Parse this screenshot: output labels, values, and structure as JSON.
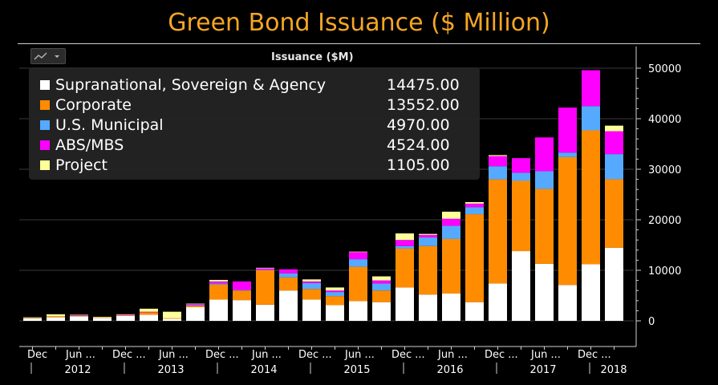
{
  "page_title": "Green Bond Issuance ($ Million)",
  "chart_data": {
    "type": "bar",
    "stacked": true,
    "series_title": "Issuance ($M)",
    "ylim": [
      -5000,
      54000
    ],
    "yticks": [
      0,
      10000,
      20000,
      30000,
      40000,
      50000
    ],
    "x_tick_labels": [
      "Dec",
      "Jun ...",
      "Dec ...",
      "Jun ...",
      "Dec ...",
      "Jun ...",
      "Dec ...",
      "Jun ...",
      "Dec ...",
      "Jun ...",
      "Dec ...",
      "Jun ...",
      "Dec ..."
    ],
    "year_labels": [
      "2012",
      "2013",
      "2014",
      "2015",
      "2016",
      "2017",
      "2018"
    ],
    "series": [
      {
        "name": "Supranational, Sovereign & Agency",
        "color": "#ffffff",
        "last": "14475.00",
        "values": [
          500,
          700,
          900,
          600,
          1000,
          1200,
          400,
          2700,
          4200,
          4100,
          3200,
          6000,
          4200,
          3100,
          3900,
          3700,
          6600,
          5200,
          5400,
          3700,
          7400,
          13800,
          11300,
          7100,
          11200,
          14475
        ]
      },
      {
        "name": "Corporate",
        "color": "#ff8c00",
        "last": "13552.00",
        "values": [
          100,
          200,
          100,
          100,
          100,
          500,
          100,
          300,
          3000,
          1900,
          6800,
          2600,
          2100,
          1800,
          6800,
          2300,
          7700,
          9600,
          10800,
          17400,
          20600,
          13900,
          14800,
          25300,
          26500,
          13552
        ]
      },
      {
        "name": "U.S. Municipal",
        "color": "#55aaff",
        "last": "4970.00",
        "values": [
          0,
          0,
          0,
          0,
          0,
          0,
          0,
          100,
          200,
          100,
          100,
          800,
          1200,
          800,
          1500,
          1400,
          500,
          1700,
          2600,
          1400,
          2600,
          1600,
          3500,
          900,
          4800,
          4970
        ]
      },
      {
        "name": "ABS/MBS",
        "color": "#ff00ff",
        "last": "4524.00",
        "values": [
          0,
          0,
          100,
          0,
          100,
          100,
          0,
          200,
          400,
          1700,
          300,
          800,
          300,
          300,
          1400,
          600,
          1200,
          500,
          1400,
          700,
          2000,
          2900,
          6700,
          8900,
          7100,
          4524
        ]
      },
      {
        "name": "Project",
        "color": "#ffff99",
        "last": "1105.00",
        "values": [
          100,
          400,
          100,
          100,
          100,
          600,
          1300,
          100,
          300,
          0,
          100,
          0,
          400,
          600,
          100,
          800,
          1300,
          200,
          1400,
          300,
          200,
          0,
          0,
          0,
          0,
          1105
        ]
      }
    ]
  },
  "colors": {
    "background": "#000000",
    "title": "#f5a623",
    "grid": "#3a3a3a",
    "axis": "#cfcfcf"
  },
  "icons": {
    "chart-type": "line-chart-icon"
  }
}
